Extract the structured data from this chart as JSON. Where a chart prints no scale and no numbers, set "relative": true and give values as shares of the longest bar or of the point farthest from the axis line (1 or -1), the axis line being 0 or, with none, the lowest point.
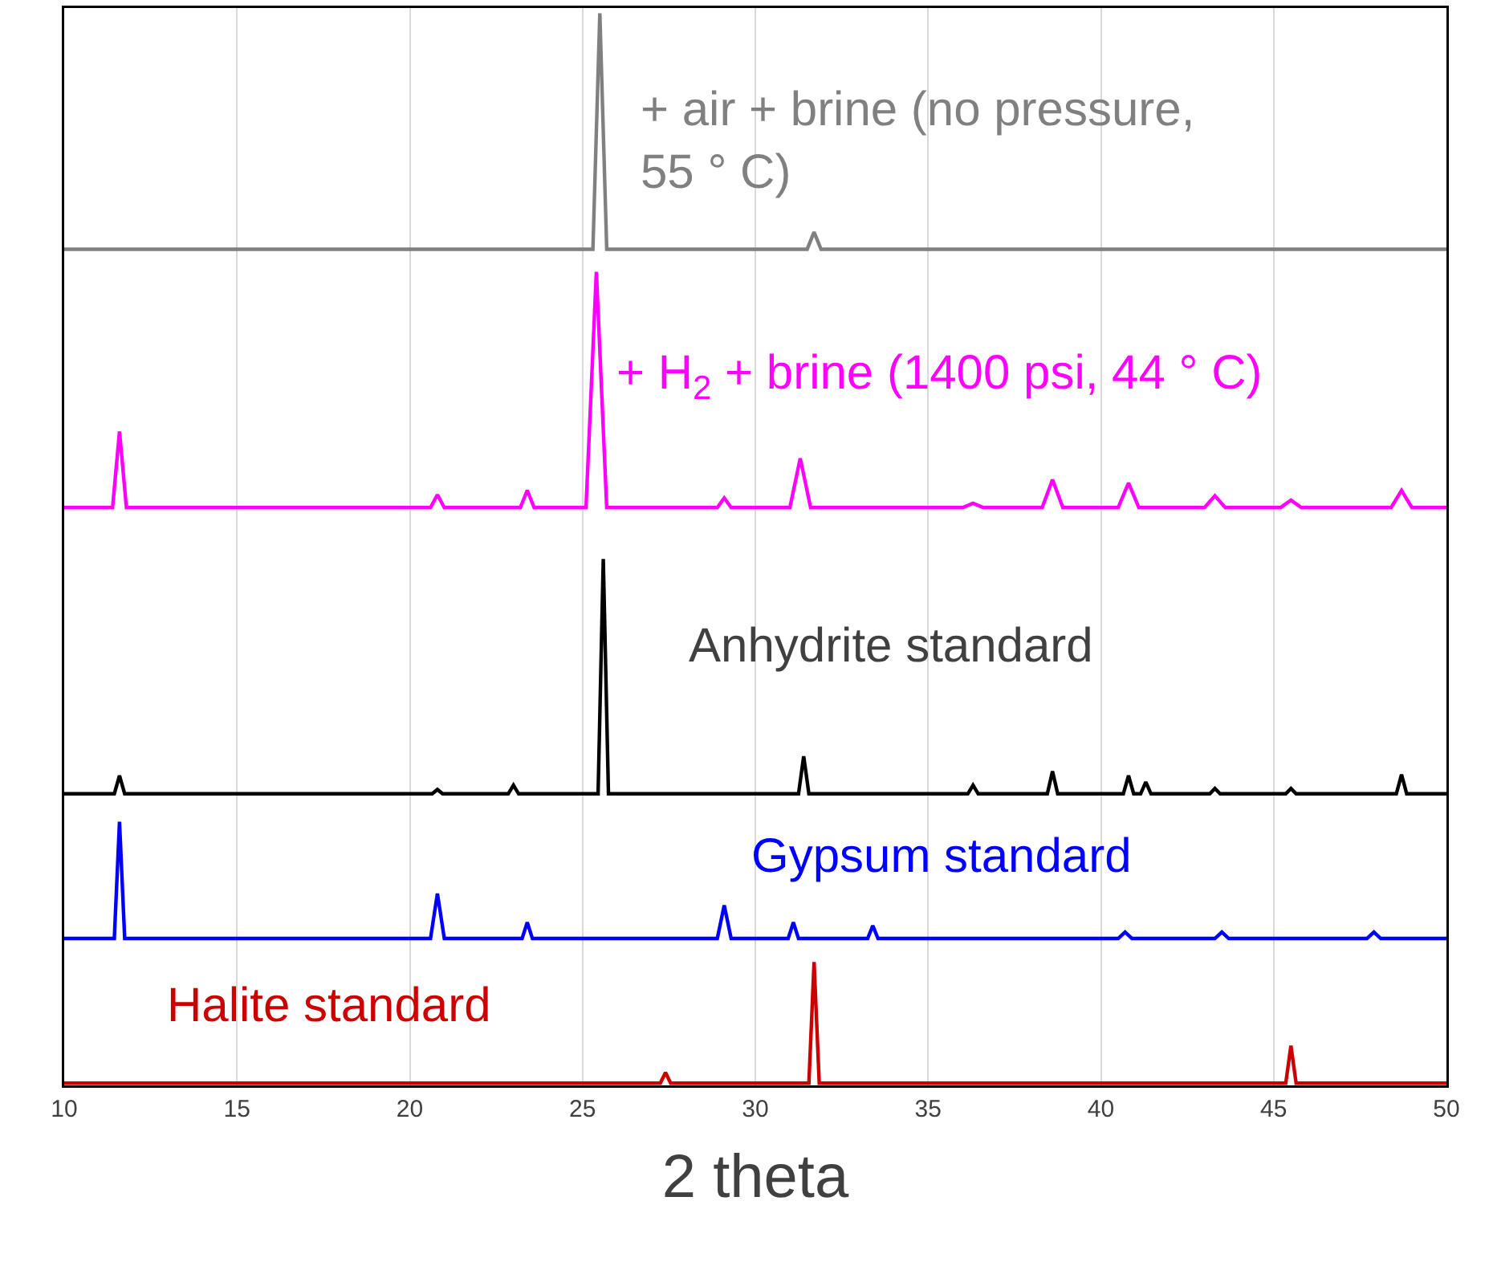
{
  "chart_data": {
    "type": "line",
    "relative": true,
    "xlabel": "2 theta",
    "xlim": [
      10,
      50
    ],
    "xticks": [
      10,
      15,
      20,
      25,
      30,
      35,
      40,
      45,
      50
    ],
    "grid": "x",
    "legend": false,
    "marker": "none",
    "line_style": "solid",
    "series": [
      {
        "name": "+ air + brine (no pressure, 55 ° C)",
        "color": "#808080",
        "x": [
          10,
          25.3,
          25.5,
          25.7,
          31.5,
          31.7,
          31.9,
          50
        ],
        "values": [
          0.78,
          0.78,
          1.0,
          0.78,
          0.78,
          0.796,
          0.78,
          0.78
        ]
      },
      {
        "name": "+ H$_{2}$ + brine (1400 psi, 44 ° C)",
        "color": "#ff00ff",
        "x": [
          10,
          11.4,
          11.6,
          11.8,
          20.6,
          20.8,
          21.0,
          23.2,
          23.4,
          23.6,
          25.1,
          25.4,
          25.7,
          28.9,
          29.1,
          29.3,
          31.0,
          31.3,
          31.6,
          36.0,
          36.3,
          36.6,
          38.3,
          38.6,
          38.9,
          40.5,
          40.8,
          41.1,
          43.0,
          43.3,
          43.6,
          45.2,
          45.5,
          45.8,
          48.4,
          48.7,
          49.0,
          50
        ],
        "values": [
          0.539,
          0.539,
          0.61,
          0.539,
          0.539,
          0.551,
          0.539,
          0.539,
          0.555,
          0.539,
          0.539,
          0.759,
          0.539,
          0.539,
          0.548,
          0.539,
          0.539,
          0.585,
          0.539,
          0.539,
          0.543,
          0.539,
          0.539,
          0.565,
          0.539,
          0.539,
          0.562,
          0.539,
          0.539,
          0.55,
          0.539,
          0.539,
          0.546,
          0.539,
          0.539,
          0.555,
          0.539,
          0.539
        ]
      },
      {
        "name": "Anhydrite standard",
        "color": "#000000",
        "x": [
          10,
          11.45,
          11.6,
          11.75,
          20.65,
          20.8,
          20.95,
          22.85,
          23.0,
          23.15,
          25.45,
          25.6,
          25.75,
          31.25,
          31.4,
          31.55,
          36.15,
          36.3,
          36.45,
          38.45,
          38.6,
          38.75,
          40.65,
          40.8,
          40.95,
          41.15,
          41.3,
          41.45,
          43.15,
          43.3,
          43.45,
          45.35,
          45.5,
          45.65,
          48.55,
          48.7,
          48.85,
          50
        ],
        "values": [
          0.272,
          0.272,
          0.289,
          0.272,
          0.272,
          0.276,
          0.272,
          0.272,
          0.28,
          0.272,
          0.272,
          0.491,
          0.272,
          0.272,
          0.307,
          0.272,
          0.272,
          0.28,
          0.272,
          0.272,
          0.293,
          0.272,
          0.272,
          0.289,
          0.272,
          0.272,
          0.283,
          0.272,
          0.272,
          0.277,
          0.272,
          0.272,
          0.277,
          0.272,
          0.272,
          0.29,
          0.272,
          0.272
        ]
      },
      {
        "name": "Gypsum standard",
        "color": "#0000ff",
        "x": [
          10,
          11.45,
          11.6,
          11.75,
          20.6,
          20.8,
          21.0,
          23.25,
          23.4,
          23.55,
          28.9,
          29.1,
          29.3,
          30.95,
          31.1,
          31.25,
          33.25,
          33.4,
          33.55,
          40.5,
          40.7,
          40.9,
          43.3,
          43.5,
          43.7,
          47.7,
          47.9,
          48.1,
          50
        ],
        "values": [
          0.137,
          0.137,
          0.246,
          0.137,
          0.137,
          0.179,
          0.137,
          0.137,
          0.152,
          0.137,
          0.137,
          0.168,
          0.137,
          0.137,
          0.152,
          0.137,
          0.137,
          0.149,
          0.137,
          0.137,
          0.143,
          0.137,
          0.137,
          0.143,
          0.137,
          0.137,
          0.143,
          0.137,
          0.137
        ]
      },
      {
        "name": "Halite standard",
        "color": "#cc0000",
        "x": [
          10,
          27.25,
          27.4,
          27.55,
          31.55,
          31.7,
          31.85,
          45.35,
          45.5,
          45.65,
          50
        ],
        "values": [
          0.002,
          0.002,
          0.012,
          0.002,
          0.002,
          0.115,
          0.002,
          0.002,
          0.037,
          0.002,
          0.002
        ]
      }
    ]
  }
}
